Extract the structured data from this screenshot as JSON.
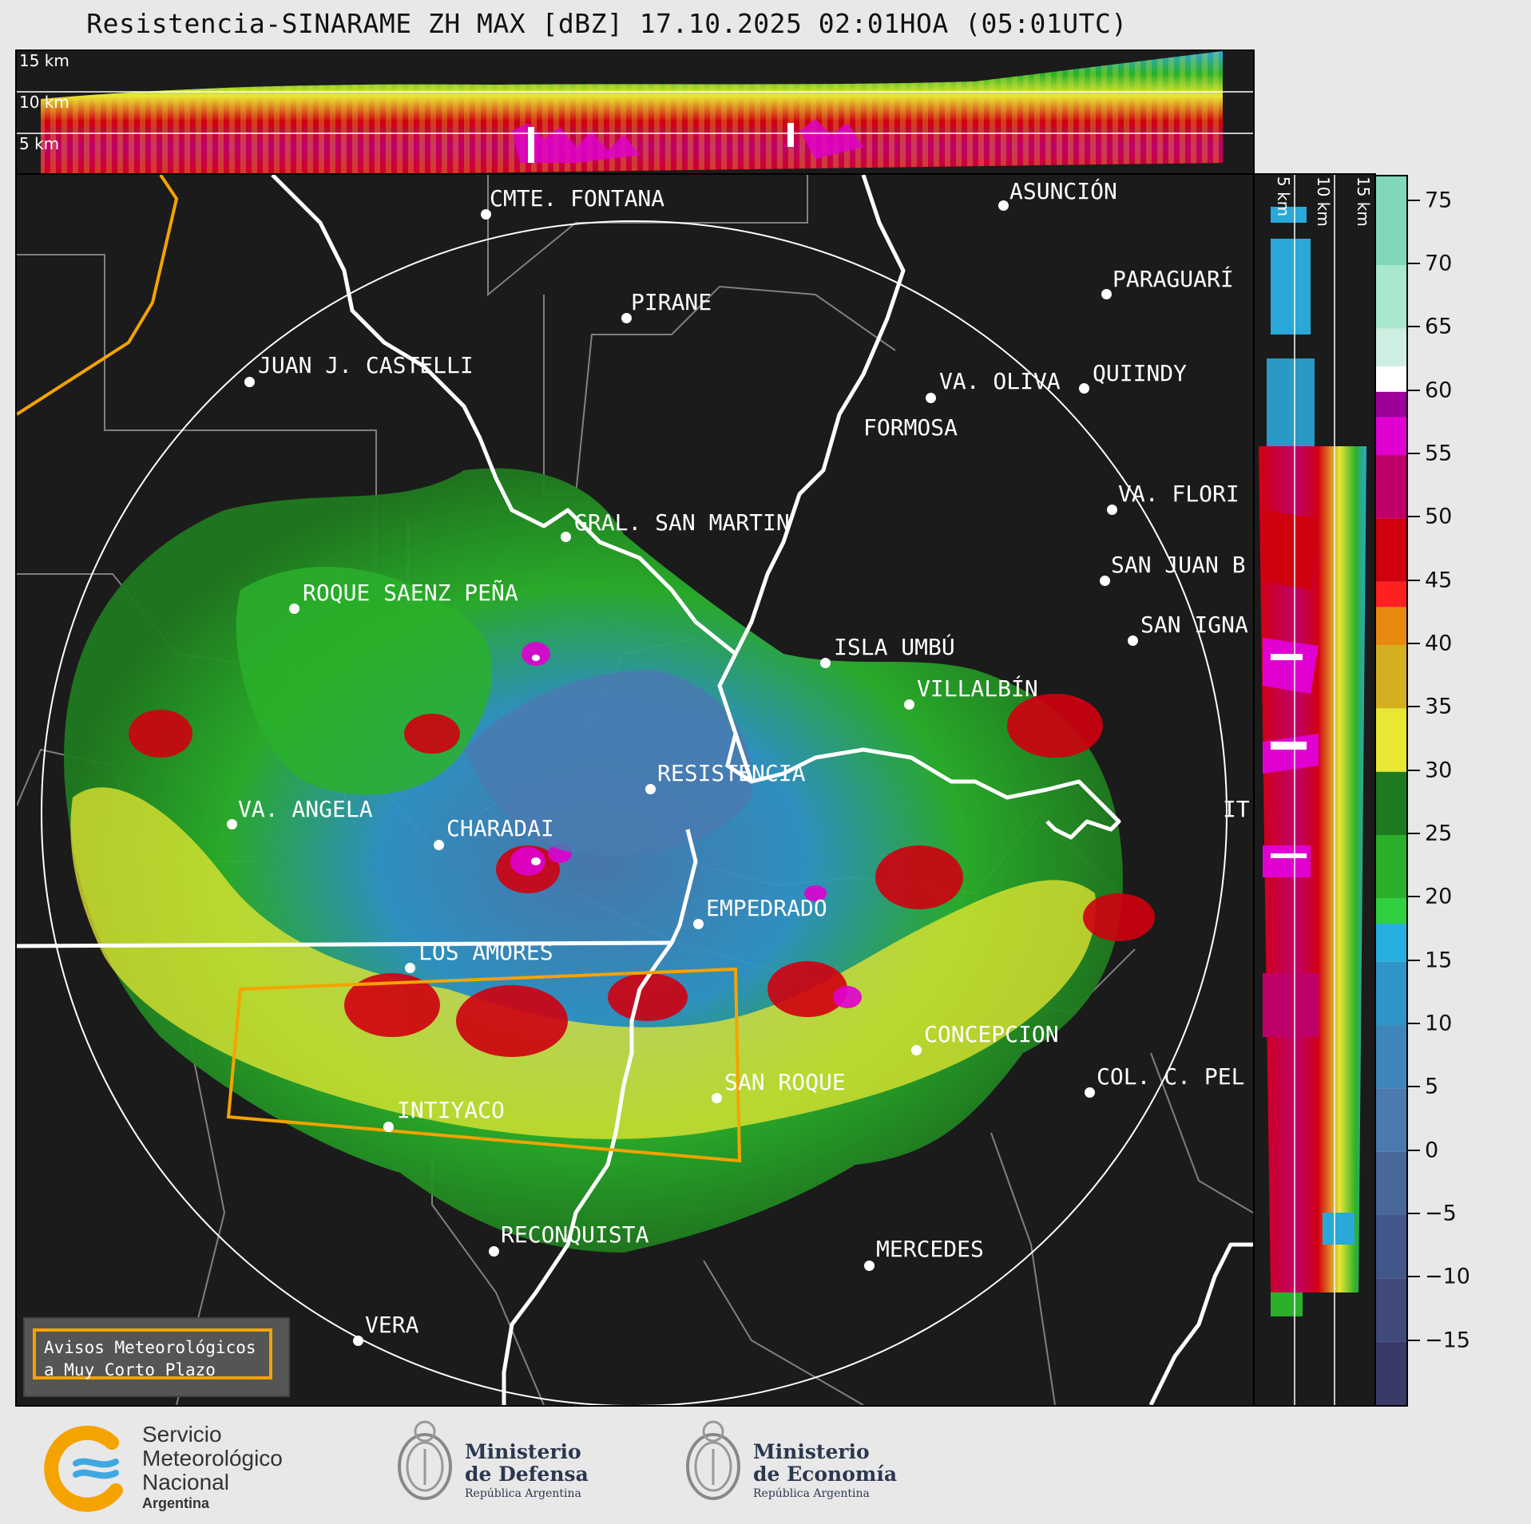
{
  "title": "Resistencia-SINARAME ZH MAX [dBZ] 17.10.2025 02:01HOA (05:01UTC)",
  "cross_section_top": {
    "labels": [
      "15 km",
      "10 km",
      "5 km"
    ]
  },
  "cross_section_right": {
    "labels": [
      "5 km",
      "10 km",
      "15 km"
    ]
  },
  "colorbar": {
    "ticks": [
      "75",
      "70",
      "65",
      "60",
      "55",
      "50",
      "45",
      "40",
      "35",
      "30",
      "25",
      "20",
      "15",
      "10",
      "5",
      "0",
      "−5",
      "−10",
      "−15"
    ],
    "range": [
      -20,
      77
    ],
    "stops": [
      {
        "from": -20,
        "to": -15,
        "color": "#3a3a6a"
      },
      {
        "from": -15,
        "to": -10,
        "color": "#3f4a7a"
      },
      {
        "from": -10,
        "to": -5,
        "color": "#43568a"
      },
      {
        "from": -5,
        "to": 0,
        "color": "#486899"
      },
      {
        "from": 0,
        "to": 5,
        "color": "#4a7ab0"
      },
      {
        "from": 5,
        "to": 10,
        "color": "#3f86bd"
      },
      {
        "from": 10,
        "to": 15,
        "color": "#2f95c8"
      },
      {
        "from": 15,
        "to": 18,
        "color": "#25aee0"
      },
      {
        "from": 18,
        "to": 20,
        "color": "#30d040"
      },
      {
        "from": 20,
        "to": 25,
        "color": "#2ab02a"
      },
      {
        "from": 25,
        "to": 30,
        "color": "#1f7a1f"
      },
      {
        "from": 30,
        "to": 35,
        "color": "#e8e832"
      },
      {
        "from": 35,
        "to": 40,
        "color": "#d4b020"
      },
      {
        "from": 40,
        "to": 43,
        "color": "#e88a10"
      },
      {
        "from": 43,
        "to": 45,
        "color": "#ff2020"
      },
      {
        "from": 45,
        "to": 50,
        "color": "#d00010"
      },
      {
        "from": 50,
        "to": 55,
        "color": "#c0006a"
      },
      {
        "from": 55,
        "to": 58,
        "color": "#e000d0"
      },
      {
        "from": 58,
        "to": 60,
        "color": "#a0009a"
      },
      {
        "from": 60,
        "to": 62,
        "color": "#ffffff"
      },
      {
        "from": 62,
        "to": 65,
        "color": "#cfeee2"
      },
      {
        "from": 65,
        "to": 70,
        "color": "#a8e8cc"
      },
      {
        "from": 70,
        "to": 77,
        "color": "#80d8b8"
      }
    ]
  },
  "cities": [
    {
      "name": "CMTE. FONTANA"
    },
    {
      "name": "ASUNCIÓN"
    },
    {
      "name": "PIRANE"
    },
    {
      "name": "PARAGUARÍ"
    },
    {
      "name": "JUAN J. CASTELLI"
    },
    {
      "name": "VA. OLIVA"
    },
    {
      "name": "QUIINDY"
    },
    {
      "name": "FORMOSA"
    },
    {
      "name": "VA. FLORI"
    },
    {
      "name": "GRAL. SAN MARTIN"
    },
    {
      "name": "SAN JUAN B"
    },
    {
      "name": "ROQUE SAENZ PEÑA"
    },
    {
      "name": "SAN IGNA"
    },
    {
      "name": "ISLA UMBÚ"
    },
    {
      "name": "VILLALBÍN"
    },
    {
      "name": "RESISTENCIA"
    },
    {
      "name": "VA. ANGELA"
    },
    {
      "name": "CHARADAI"
    },
    {
      "name": "IT"
    },
    {
      "name": "EMPEDRADO"
    },
    {
      "name": "LOS AMORES"
    },
    {
      "name": "CONCEPCION"
    },
    {
      "name": "COL. C. PEL"
    },
    {
      "name": "SAN ROQUE"
    },
    {
      "name": "INTIYACO"
    },
    {
      "name": "RECONQUISTA"
    },
    {
      "name": "MERCEDES"
    },
    {
      "name": "VERA"
    }
  ],
  "warning_box": {
    "line1": "Avisos Meteorológicos",
    "line2": "a Muy Corto Plazo"
  },
  "logos": {
    "smn": {
      "line1": "Servicio",
      "line2": "Meteorológico",
      "line3": "Nacional",
      "line4": "Argentina"
    },
    "defensa": {
      "line1": "Ministerio",
      "line2": "de Defensa",
      "line3": "República Argentina"
    },
    "economia": {
      "line1": "Ministerio",
      "line2": "de Economía",
      "line3": "República Argentina"
    }
  },
  "colors": {
    "warning_outline": "#f5a300",
    "borders": "#ffffff",
    "range_ring": "#ffffff",
    "admin_lines": "#808080"
  }
}
